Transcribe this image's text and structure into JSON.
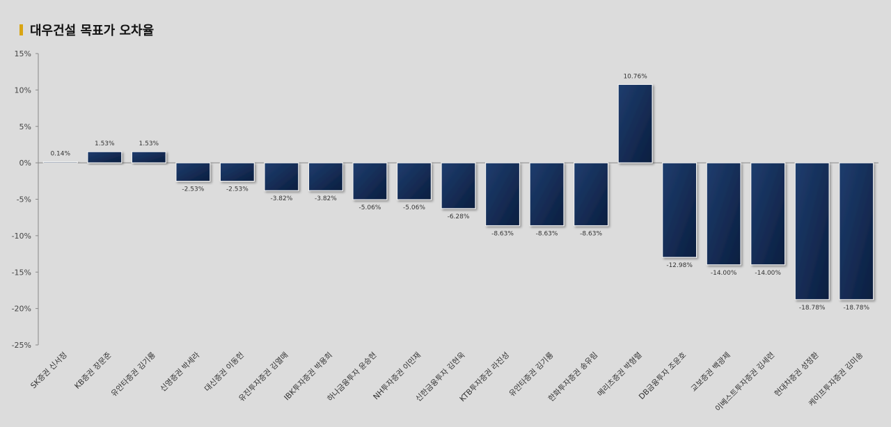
{
  "title": "대우건설 목표가 오차율",
  "colors": {
    "accent": "#d9a514",
    "bar_dark": "#0b1e3f",
    "bar_light": "#1f3d6e",
    "background": "#dcdcdc"
  },
  "chart_data": {
    "type": "bar",
    "title": "대우건설 목표가 오차율",
    "xlabel": "",
    "ylabel": "",
    "ylim": [
      -25,
      15
    ],
    "yticks": [
      15,
      10,
      5,
      0,
      -5,
      -10,
      -15,
      -20,
      -25
    ],
    "ytick_labels": [
      "15%",
      "10%",
      "5%",
      "0%",
      "-5%",
      "-10%",
      "-15%",
      "-20%",
      "-25%"
    ],
    "grid": false,
    "categories": [
      "SK증권 신서정",
      "KB증권 장문준",
      "유안타증권 김기룡",
      "신영증권 박세라",
      "대신증권 이동헌",
      "유진투자증권 김열매",
      "IBK투자증권 박용희",
      "하나금융투자 윤승현",
      "NH투자증권 이민재",
      "신한금융투자 김현욱",
      "KTB투자증권 라진성",
      "유안타증권 김기룡",
      "한화투자증권 송유림",
      "메리츠증권 박형렬",
      "DB금융투자 조윤호",
      "교보증권 백광제",
      "이베스트투자증권 김세련",
      "현대차증권 성정환",
      "케이프투자증권 김미송"
    ],
    "values": [
      0.14,
      1.53,
      1.53,
      -2.53,
      -2.53,
      -3.82,
      -3.82,
      -5.06,
      -5.06,
      -6.28,
      -8.63,
      -8.63,
      -8.63,
      10.76,
      -12.98,
      -14.0,
      -14.0,
      -18.78,
      -18.78
    ],
    "data_labels": [
      "0.14%",
      "1.53%",
      "1.53%",
      "-2.53%",
      "-2.53%",
      "-3.82%",
      "-3.82%",
      "-5.06%",
      "-5.06%",
      "-6.28%",
      "-8.63%",
      "-8.63%",
      "-8.63%",
      "10.76%",
      "-12.98%",
      "-14.00%",
      "-14.00%",
      "-18.78%",
      "-18.78%"
    ]
  }
}
